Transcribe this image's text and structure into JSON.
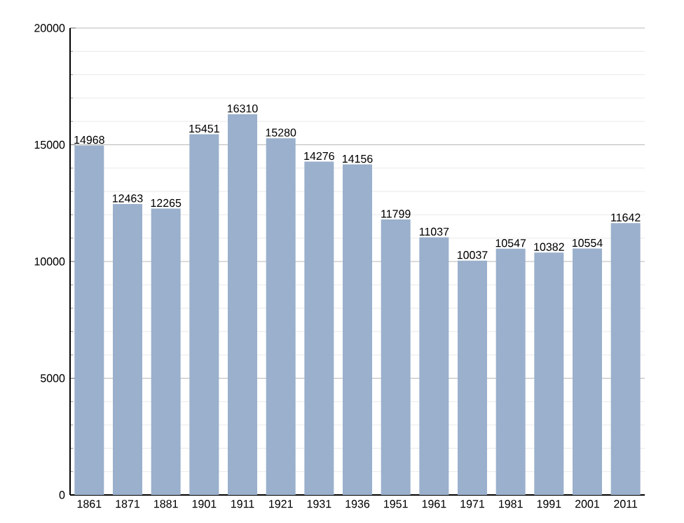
{
  "chart_data": {
    "type": "bar",
    "categories": [
      "1861",
      "1871",
      "1881",
      "1901",
      "1911",
      "1921",
      "1931",
      "1936",
      "1951",
      "1961",
      "1971",
      "1981",
      "1991",
      "2001",
      "2011"
    ],
    "values": [
      14968,
      12463,
      12265,
      15451,
      16310,
      15280,
      14276,
      14156,
      11799,
      11037,
      10037,
      10547,
      10382,
      10554,
      11642
    ],
    "color": "#9ab0cc",
    "ylim": [
      0,
      20000
    ],
    "yticks": [
      0,
      5000,
      10000,
      15000,
      20000
    ],
    "grid": "y",
    "data_labels": true
  }
}
